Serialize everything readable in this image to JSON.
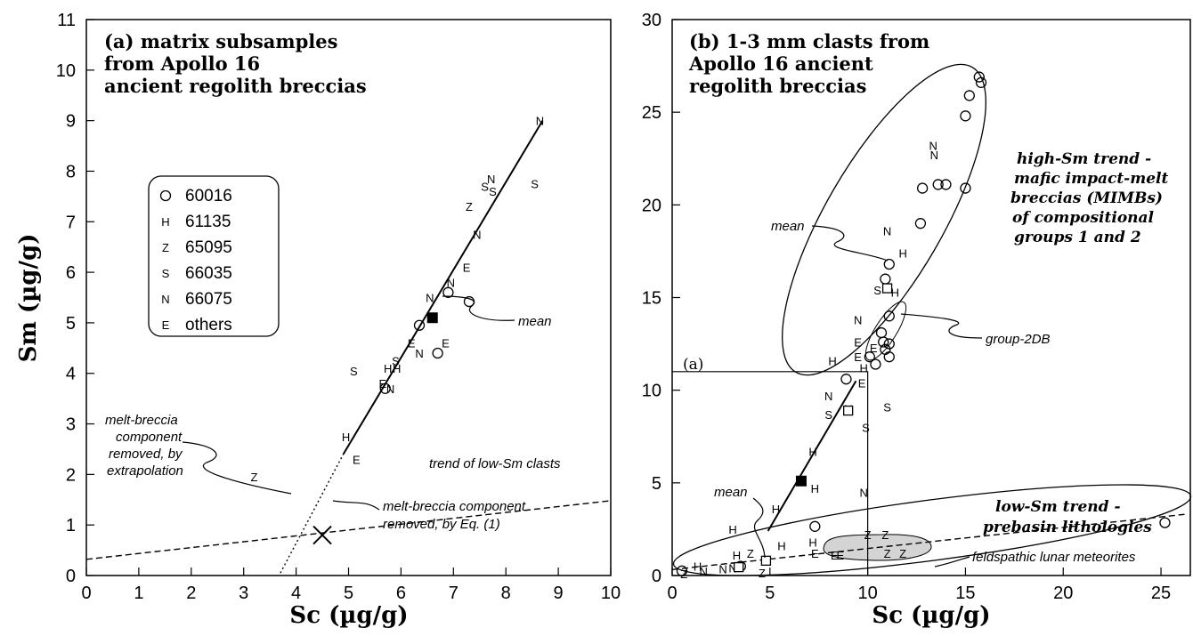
{
  "chart_data": [
    {
      "type": "scatter",
      "title": "(a)  matrix subsamples from Apollo 16 ancient regolith breccias",
      "title_lines": [
        "(a)  matrix subsamples",
        "from Apollo 16",
        "ancient regolith breccias"
      ],
      "xlabel": "Sc  (µg/g)",
      "ylabel": "Sm  (µg/g)",
      "xlim": [
        0,
        10
      ],
      "ylim": [
        0,
        11
      ],
      "xticks": [
        "0",
        "1",
        "2",
        "3",
        "4",
        "5",
        "6",
        "7",
        "8",
        "9",
        "10"
      ],
      "yticks": [
        "0",
        "1",
        "2",
        "3",
        "4",
        "5",
        "6",
        "7",
        "8",
        "9",
        "10",
        "11"
      ],
      "legend": {
        "position": "left-middle",
        "entries": [
          {
            "marker": "O",
            "label": "60016"
          },
          {
            "marker": "H",
            "label": "61135"
          },
          {
            "marker": "Z",
            "label": "65095"
          },
          {
            "marker": "S",
            "label": "66035"
          },
          {
            "marker": "N",
            "label": "66075"
          },
          {
            "marker": "E",
            "label": "others"
          }
        ]
      },
      "points": [
        {
          "m": "N",
          "x": 8.65,
          "y": 9.0
        },
        {
          "m": "S",
          "x": 7.6,
          "y": 7.7
        },
        {
          "m": "N",
          "x": 7.72,
          "y": 7.85
        },
        {
          "m": "S",
          "x": 7.75,
          "y": 7.6
        },
        {
          "m": "S",
          "x": 8.55,
          "y": 7.75
        },
        {
          "m": "Z",
          "x": 7.3,
          "y": 7.3
        },
        {
          "m": "N",
          "x": 7.45,
          "y": 6.75
        },
        {
          "m": "E",
          "x": 7.25,
          "y": 6.1
        },
        {
          "m": "N",
          "x": 6.95,
          "y": 5.8
        },
        {
          "m": "O",
          "x": 6.9,
          "y": 5.6
        },
        {
          "m": "N",
          "x": 6.55,
          "y": 5.5
        },
        {
          "m": "O",
          "x": 7.3,
          "y": 5.42
        },
        {
          "m": "O",
          "x": 6.35,
          "y": 4.95
        },
        {
          "m": "E",
          "x": 6.2,
          "y": 4.6
        },
        {
          "m": "E",
          "x": 6.85,
          "y": 4.6
        },
        {
          "m": "O",
          "x": 6.7,
          "y": 4.4
        },
        {
          "m": "N",
          "x": 6.35,
          "y": 4.4
        },
        {
          "m": "S",
          "x": 5.1,
          "y": 4.05
        },
        {
          "m": "S",
          "x": 5.9,
          "y": 4.25
        },
        {
          "m": "H",
          "x": 5.75,
          "y": 4.1
        },
        {
          "m": "H",
          "x": 5.92,
          "y": 4.1
        },
        {
          "m": "E",
          "x": 5.65,
          "y": 3.8
        },
        {
          "m": "O",
          "x": 5.7,
          "y": 3.7
        },
        {
          "m": "N",
          "x": 5.8,
          "y": 3.7
        },
        {
          "m": "H",
          "x": 4.95,
          "y": 2.75
        },
        {
          "m": "E",
          "x": 5.15,
          "y": 2.3
        },
        {
          "m": "Z",
          "x": 3.2,
          "y": 1.95
        }
      ],
      "mean": {
        "x": 6.6,
        "y": 5.1
      },
      "x_marker": {
        "x": 4.5,
        "y": 0.8
      },
      "trend_line": [
        [
          4.9,
          2.4
        ],
        [
          8.7,
          9.0
        ]
      ],
      "extrapolation": [
        [
          3.7,
          0.05
        ],
        [
          4.9,
          2.4
        ]
      ],
      "low_sm_trend": [
        [
          0,
          0.32
        ],
        [
          10,
          1.48
        ]
      ],
      "annotations": [
        {
          "text": "mean"
        },
        {
          "text": "melt-breccia component removed, by extrapolation",
          "lines": [
            "melt-breccia",
            "component",
            "removed, by",
            "extrapolation"
          ]
        },
        {
          "text": "trend of low-Sm clasts"
        },
        {
          "text": "melt-breccia component removed, by Eq. (1)",
          "lines": [
            "melt-breccia component",
            "removed, by Eq. (1)"
          ]
        }
      ]
    },
    {
      "type": "scatter",
      "title": "(b)  1-3 mm clasts from Apollo 16 ancient regolith breccias",
      "title_lines": [
        "(b)  1-3 mm clasts from",
        "Apollo 16 ancient",
        "regolith breccias"
      ],
      "xlabel": "Sc  (µg/g)",
      "xlim": [
        0,
        26.5
      ],
      "ylim": [
        0,
        30
      ],
      "xticks": [
        "0",
        "5",
        "10",
        "15",
        "20",
        "25"
      ],
      "yticks": [
        "0",
        "5",
        "10",
        "15",
        "20",
        "25",
        "30"
      ],
      "inset_label": "(a)",
      "points": [
        {
          "m": "O",
          "x": 15.7,
          "y": 26.9
        },
        {
          "m": "O",
          "x": 15.8,
          "y": 26.6
        },
        {
          "m": "O",
          "x": 15.2,
          "y": 25.9
        },
        {
          "m": "O",
          "x": 15.0,
          "y": 24.8
        },
        {
          "m": "N",
          "x": 13.35,
          "y": 23.2
        },
        {
          "m": "N",
          "x": 13.4,
          "y": 22.7
        },
        {
          "m": "O",
          "x": 13.6,
          "y": 21.1
        },
        {
          "m": "O",
          "x": 14.0,
          "y": 21.1
        },
        {
          "m": "O",
          "x": 12.8,
          "y": 20.9
        },
        {
          "m": "O",
          "x": 15.0,
          "y": 20.9
        },
        {
          "m": "O",
          "x": 12.7,
          "y": 19.0
        },
        {
          "m": "N",
          "x": 11.0,
          "y": 18.6
        },
        {
          "m": "O",
          "x": 11.1,
          "y": 16.8
        },
        {
          "m": "H",
          "x": 11.8,
          "y": 17.4
        },
        {
          "m": "O",
          "x": 10.9,
          "y": 16.0
        },
        {
          "m": "S",
          "x": 10.5,
          "y": 15.4
        },
        {
          "m": "H",
          "x": 11.4,
          "y": 15.3
        },
        {
          "m": "O",
          "x": 11.1,
          "y": 14.0
        },
        {
          "m": "N",
          "x": 9.5,
          "y": 13.8
        },
        {
          "m": "O",
          "x": 10.7,
          "y": 13.1
        },
        {
          "m": "E",
          "x": 9.5,
          "y": 12.6
        },
        {
          "m": "O",
          "x": 10.8,
          "y": 12.6
        },
        {
          "m": "O",
          "x": 11.1,
          "y": 12.5
        },
        {
          "m": "E",
          "x": 10.3,
          "y": 12.3
        },
        {
          "m": "O",
          "x": 10.9,
          "y": 12.2
        },
        {
          "m": "O",
          "x": 11.1,
          "y": 11.8
        },
        {
          "m": "H",
          "x": 8.2,
          "y": 11.6
        },
        {
          "m": "E",
          "x": 9.5,
          "y": 11.8
        },
        {
          "m": "H",
          "x": 9.8,
          "y": 11.2
        },
        {
          "m": "O",
          "x": 10.4,
          "y": 11.4
        },
        {
          "m": "O",
          "x": 10.1,
          "y": 11.8
        },
        {
          "m": "O",
          "x": 8.9,
          "y": 10.6
        },
        {
          "m": "E",
          "x": 9.7,
          "y": 10.4
        },
        {
          "m": "N",
          "x": 8.0,
          "y": 9.7
        },
        {
          "m": "N",
          "x": 9.0,
          "y": 9.0
        },
        {
          "m": "S",
          "x": 8.0,
          "y": 8.7
        },
        {
          "m": "S",
          "x": 11.0,
          "y": 9.1
        },
        {
          "m": "S",
          "x": 9.9,
          "y": 8.0
        },
        {
          "m": "H",
          "x": 7.2,
          "y": 6.7
        },
        {
          "m": "H",
          "x": 7.3,
          "y": 4.7
        },
        {
          "m": "N",
          "x": 9.8,
          "y": 4.5
        },
        {
          "m": "H",
          "x": 5.3,
          "y": 3.6
        },
        {
          "m": "O",
          "x": 7.3,
          "y": 2.65
        },
        {
          "m": "H",
          "x": 3.1,
          "y": 2.5
        },
        {
          "m": "H",
          "x": 7.2,
          "y": 1.8
        },
        {
          "m": "H",
          "x": 5.6,
          "y": 1.6
        },
        {
          "m": "H",
          "x": 3.3,
          "y": 1.1
        },
        {
          "m": "Z",
          "x": 4.0,
          "y": 1.2
        },
        {
          "m": "E",
          "x": 7.3,
          "y": 1.2
        },
        {
          "m": "E",
          "x": 8.3,
          "y": 1.1
        },
        {
          "m": "E",
          "x": 8.6,
          "y": 1.1
        },
        {
          "m": "Z",
          "x": 11.0,
          "y": 1.2
        },
        {
          "m": "Z",
          "x": 11.8,
          "y": 1.2
        },
        {
          "m": "Z",
          "x": 10.0,
          "y": 2.2
        },
        {
          "m": "Z",
          "x": 10.9,
          "y": 2.2
        },
        {
          "m": "Z",
          "x": 4.6,
          "y": 0.15
        },
        {
          "m": "H",
          "x": 1.3,
          "y": 0.5
        },
        {
          "m": "N",
          "x": 1.6,
          "y": 0.25
        },
        {
          "m": "N",
          "x": 2.6,
          "y": 0.35
        },
        {
          "m": "N",
          "x": 3.1,
          "y": 0.4
        },
        {
          "m": "O",
          "x": 3.5,
          "y": 0.5
        },
        {
          "m": "O",
          "x": 0.5,
          "y": 0.25
        },
        {
          "m": "Z",
          "x": 0.6,
          "y": 0.1
        },
        {
          "m": "O",
          "x": 25.2,
          "y": 2.85
        }
      ],
      "open_squares": [
        {
          "x": 11.0,
          "y": 15.5
        },
        {
          "x": 4.8,
          "y": 0.8
        },
        {
          "x": 3.4,
          "y": 0.45
        },
        {
          "x": 9.0,
          "y": 8.9
        }
      ],
      "mean_filled": {
        "x": 6.6,
        "y": 5.1
      },
      "inset_box": {
        "x": [
          0,
          10
        ],
        "y": [
          0,
          11
        ]
      },
      "annotations": [
        {
          "text": "high-Sm trend - mafic impact-melt breccias (MIMBs) of compositional groups 1 and 2",
          "lines": [
            "high-Sm trend -",
            "mafic impact-melt",
            "breccias (MIMBs)",
            "of compositional",
            "groups 1 and 2"
          ]
        },
        {
          "text": "mean"
        },
        {
          "text": "group-2DB"
        },
        {
          "text": "mean"
        },
        {
          "text": "low-Sm trend - prebasin lithologies",
          "lines": [
            "low-Sm trend -",
            "prebasin lithologies"
          ]
        },
        {
          "text": "feldspathic lunar meteorites"
        }
      ]
    }
  ]
}
